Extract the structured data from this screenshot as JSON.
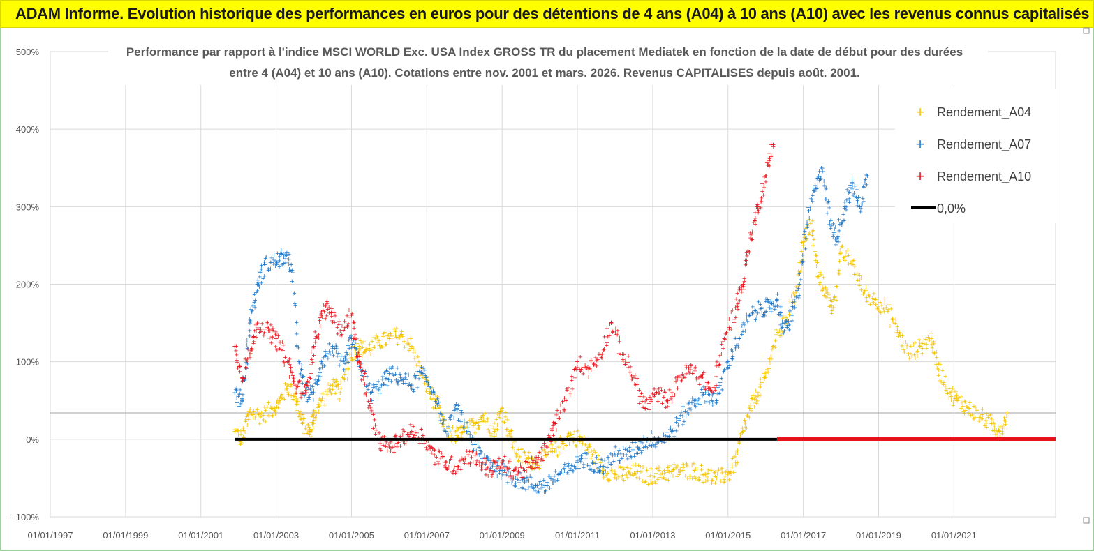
{
  "header": {
    "title": "ADAM Informe. Evolution historique des performances en euros pour des détentions de 4 ans (A04) à 10 ans (A10) avec les revenus connus capitalisés"
  },
  "colors": {
    "a04": "#f5c400",
    "a07": "#1f78c8",
    "a10": "#e8141b",
    "zero": "#000000",
    "banner": "#ffff00"
  },
  "chart_data": {
    "type": "scatter",
    "title_line1": "Performance par rapport à l'indice MSCI WORLD Exc. USA Index GROSS TR  du placement Mediatek  en fonction de la date de début pour des durées",
    "title_line2": "entre 4 (A04) et 10 ans (A10). Cotations entre nov. 2001 et mars. 2026. Revenus CAPITALISES depuis août. 2001.",
    "xlabel": "",
    "ylabel": "",
    "xlim": [
      1997.0,
      2023.7
    ],
    "ylim": [
      -100,
      500
    ],
    "y_ticks": [
      -100,
      0,
      100,
      200,
      300,
      400,
      500
    ],
    "y_tick_labels": [
      "- 100%",
      "0%",
      "100%",
      "200%",
      "300%",
      "400%",
      "500%"
    ],
    "x_ticks": [
      1997,
      1999,
      2001,
      2003,
      2005,
      2007,
      2009,
      2011,
      2013,
      2015,
      2017,
      2019,
      2021
    ],
    "x_tick_labels": [
      "01/01/1997",
      "01/01/1999",
      "01/01/2001",
      "01/01/2003",
      "01/01/2005",
      "01/01/2007",
      "01/01/2009",
      "01/01/2011",
      "01/01/2013",
      "01/01/2015",
      "01/01/2017",
      "01/01/2019",
      "01/01/2021"
    ],
    "legend_position": "top-right",
    "series": [
      {
        "name": "Rendement_A04",
        "color_key": "a04",
        "marker": "+",
        "x": [
          2001.9,
          2002.1,
          2002.3,
          2002.6,
          2002.9,
          2003.1,
          2003.3,
          2003.5,
          2003.7,
          2003.9,
          2004.0,
          2004.2,
          2004.5,
          2004.7,
          2005.0,
          2005.2,
          2005.4,
          2005.7,
          2006.0,
          2006.3,
          2006.6,
          2006.9,
          2007.1,
          2007.3,
          2007.5,
          2007.8,
          2008.0,
          2008.3,
          2008.5,
          2008.8,
          2009.0,
          2009.2,
          2009.4,
          2009.7,
          2009.9,
          2010.2,
          2010.5,
          2010.8,
          2011.1,
          2011.4,
          2011.7,
          2012.0,
          2012.3,
          2012.6,
          2012.9,
          2013.2,
          2013.5,
          2013.8,
          2014.1,
          2014.4,
          2014.7,
          2015.0,
          2015.2,
          2015.4,
          2015.6,
          2015.8,
          2016.0,
          2016.2,
          2016.5,
          2016.8,
          2017.0,
          2017.2,
          2017.4,
          2017.6,
          2017.8,
          2018.0,
          2018.3,
          2018.6,
          2018.9,
          2019.2,
          2019.5,
          2019.8,
          2020.1,
          2020.4,
          2020.6,
          2020.9,
          2021.1,
          2021.4,
          2021.7,
          2022.0,
          2022.2,
          2022.4
        ],
        "y": [
          10,
          0,
          35,
          30,
          40,
          48,
          70,
          55,
          20,
          10,
          30,
          50,
          70,
          60,
          110,
          120,
          115,
          125,
          130,
          135,
          120,
          80,
          60,
          40,
          10,
          5,
          10,
          20,
          30,
          10,
          40,
          10,
          -20,
          -25,
          -30,
          -20,
          -10,
          5,
          0,
          -20,
          -40,
          -45,
          -45,
          -42,
          -48,
          -45,
          -42,
          -40,
          -40,
          -45,
          -50,
          -45,
          -30,
          10,
          40,
          60,
          80,
          120,
          150,
          190,
          250,
          280,
          210,
          190,
          170,
          240,
          230,
          190,
          180,
          170,
          140,
          110,
          120,
          130,
          90,
          60,
          50,
          40,
          30,
          20,
          10,
          30
        ]
      },
      {
        "name": "Rendement_A07",
        "color_key": "a07",
        "marker": "+",
        "x": [
          2001.9,
          2002.1,
          2002.3,
          2002.5,
          2002.7,
          2003.0,
          2003.2,
          2003.4,
          2003.6,
          2003.8,
          2004.0,
          2004.2,
          2004.5,
          2004.8,
          2005.0,
          2005.2,
          2005.5,
          2005.8,
          2006.0,
          2006.3,
          2006.6,
          2006.9,
          2007.2,
          2007.5,
          2007.8,
          2008.1,
          2008.4,
          2008.7,
          2009.0,
          2009.3,
          2009.6,
          2009.9,
          2010.2,
          2010.5,
          2010.8,
          2011.1,
          2011.4,
          2011.7,
          2012.0,
          2012.3,
          2012.6,
          2012.9,
          2013.2,
          2013.5,
          2013.8,
          2014.1,
          2014.4,
          2014.7,
          2015.0,
          2015.3,
          2015.6,
          2015.9,
          2016.1,
          2016.3,
          2016.5,
          2016.7,
          2016.9,
          2017.1,
          2017.3,
          2017.5,
          2017.7,
          2017.9,
          2018.1,
          2018.3,
          2018.5,
          2018.7
        ],
        "y": [
          60,
          50,
          150,
          200,
          225,
          230,
          235,
          225,
          100,
          60,
          60,
          100,
          120,
          90,
          130,
          100,
          60,
          70,
          85,
          80,
          70,
          85,
          60,
          10,
          40,
          10,
          -20,
          -30,
          -40,
          -50,
          -55,
          -60,
          -60,
          -45,
          -40,
          -25,
          -30,
          -35,
          -20,
          -20,
          -10,
          0,
          0,
          10,
          30,
          50,
          60,
          50,
          100,
          130,
          160,
          170,
          170,
          180,
          140,
          160,
          200,
          280,
          320,
          350,
          280,
          260,
          300,
          330,
          300,
          340
        ]
      },
      {
        "name": "Rendement_A10",
        "color_key": "a10",
        "marker": "+",
        "x": [
          2001.9,
          2002.1,
          2002.3,
          2002.5,
          2002.8,
          2003.0,
          2003.3,
          2003.5,
          2003.8,
          2004.0,
          2004.2,
          2004.4,
          2004.7,
          2005.0,
          2005.2,
          2005.4,
          2005.7,
          2006.0,
          2006.3,
          2006.6,
          2006.9,
          2007.2,
          2007.5,
          2007.8,
          2008.1,
          2008.4,
          2008.7,
          2009.0,
          2009.3,
          2009.6,
          2009.9,
          2010.2,
          2010.4,
          2010.7,
          2011.0,
          2011.3,
          2011.6,
          2011.9,
          2012.2,
          2012.5,
          2012.8,
          2013.1,
          2013.4,
          2013.7,
          2014.0,
          2014.3,
          2014.6,
          2014.9,
          2015.2,
          2015.4,
          2015.6,
          2015.8,
          2016.0,
          2016.2
        ],
        "y": [
          120,
          80,
          110,
          150,
          140,
          130,
          100,
          70,
          60,
          120,
          160,
          170,
          140,
          160,
          100,
          60,
          0,
          -10,
          0,
          10,
          5,
          -20,
          -30,
          -35,
          -20,
          -30,
          -40,
          -30,
          -40,
          -40,
          -30,
          -10,
          20,
          50,
          100,
          90,
          110,
          150,
          110,
          80,
          40,
          60,
          50,
          80,
          90,
          80,
          60,
          130,
          170,
          200,
          260,
          300,
          340,
          380
        ]
      },
      {
        "name": "0,0%",
        "color_key": "zero",
        "marker": "line",
        "x": [
          2001.9,
          2016.3
        ],
        "y": [
          0,
          0
        ]
      }
    ],
    "zero_tail": {
      "x_start": 2016.3,
      "x_end": 2023.7,
      "y": 0,
      "color_key": "a10"
    }
  }
}
